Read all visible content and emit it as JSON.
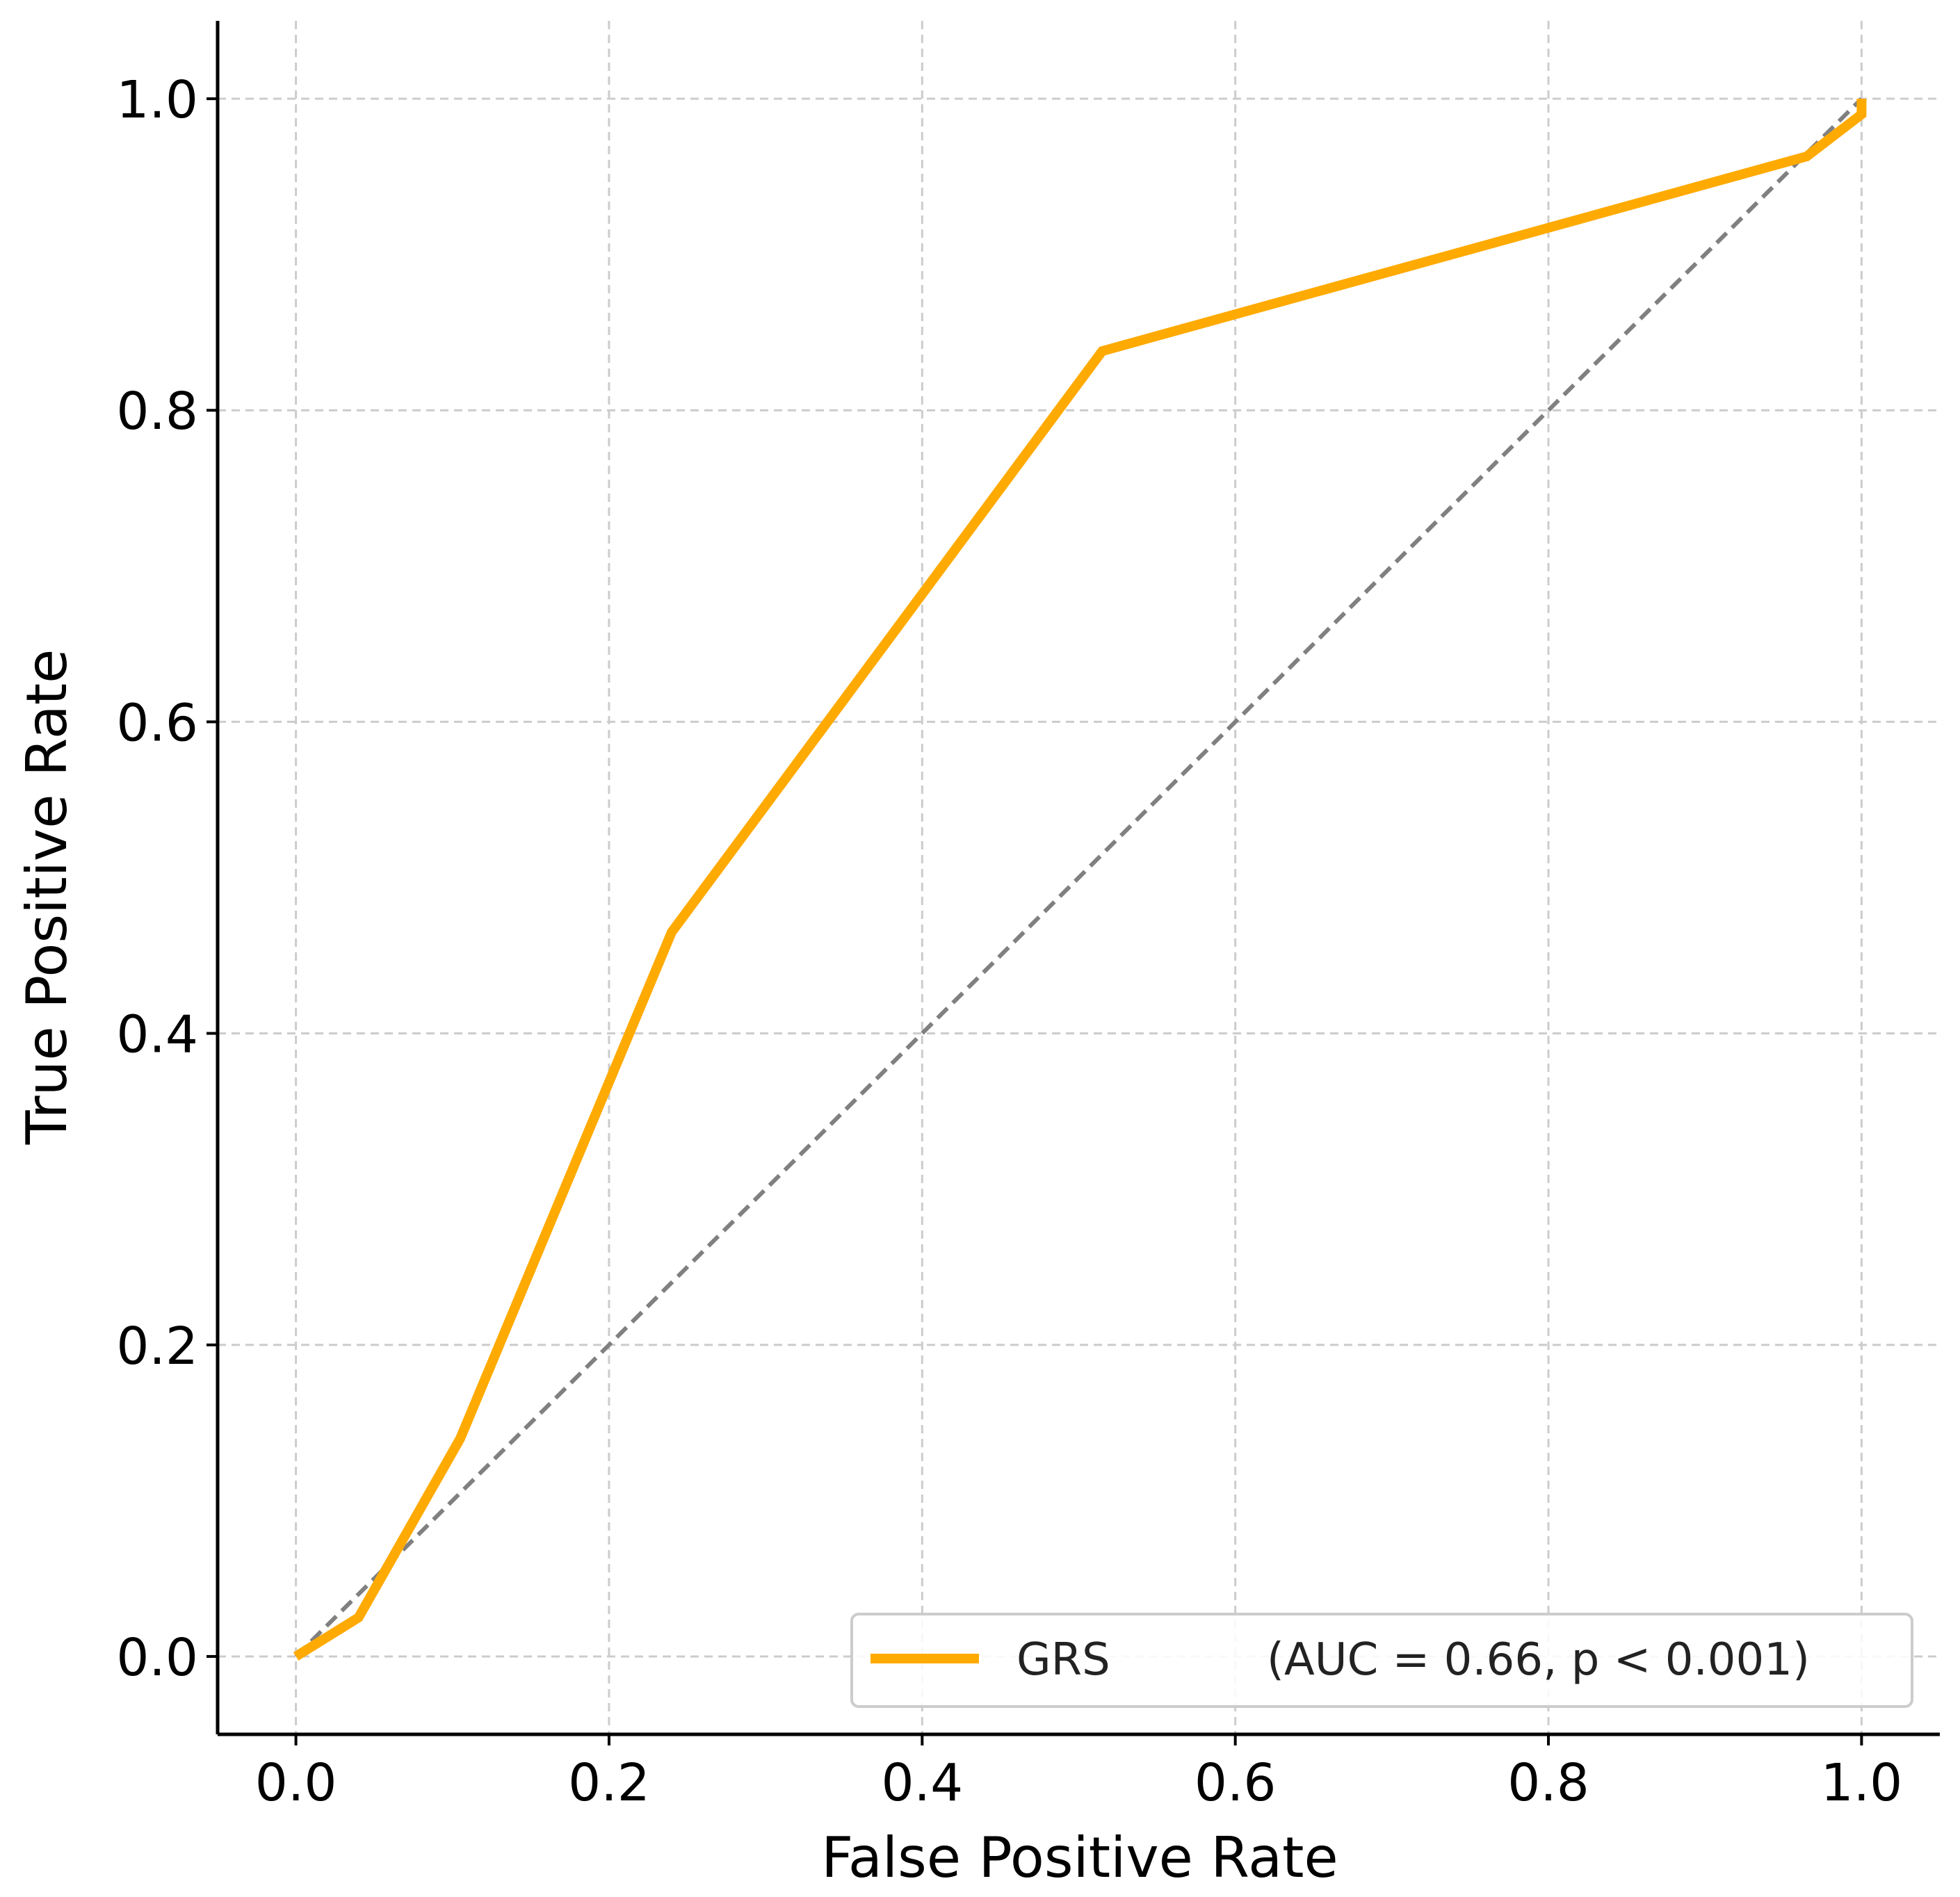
{
  "chart_data": {
    "type": "line",
    "title": "",
    "xlabel": "False Positive Rate",
    "ylabel": "True Positive Rate",
    "xlim": [
      -0.05,
      1.05
    ],
    "ylim": [
      -0.05,
      1.05
    ],
    "xticks": [
      "0.0",
      "0.2",
      "0.4",
      "0.6",
      "0.8",
      "1.0"
    ],
    "yticks": [
      "0.0",
      "0.2",
      "0.4",
      "0.6",
      "0.8",
      "1.0"
    ],
    "grid": true,
    "legend_position": "lower-right",
    "series": [
      {
        "name": "GRS",
        "legend_label": "GRS",
        "legend_suffix": "(AUC = 0.66, p < 0.001)",
        "color": "#FFAA00",
        "x": [
          0.0,
          0.04,
          0.105,
          0.24,
          0.515,
          0.965,
          1.0,
          1.0
        ],
        "y": [
          0.0,
          0.025,
          0.14,
          0.465,
          0.838,
          0.963,
          0.99,
          1.0
        ]
      }
    ],
    "reference_line": {
      "style": "dashed",
      "color": "#808080",
      "x": [
        0.0,
        1.0
      ],
      "y": [
        0.0,
        1.0
      ]
    }
  }
}
